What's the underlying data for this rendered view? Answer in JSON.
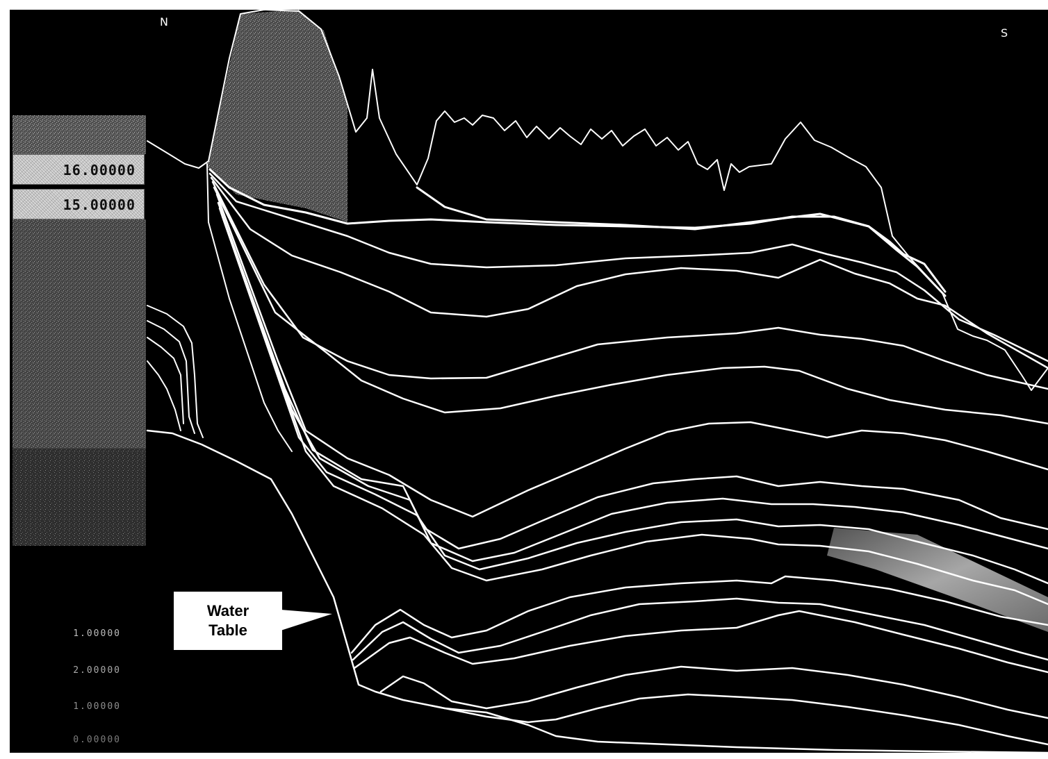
{
  "directions": {
    "north": "N",
    "south": "S"
  },
  "legend": [
    {
      "label": "16.00000"
    },
    {
      "label": "15.00000"
    }
  ],
  "scale": [
    "1.00000",
    "2.00000",
    "1.00000",
    "0.00000"
  ],
  "callout": {
    "text": "Water\nTable"
  },
  "colors": {
    "background": "#000000",
    "strata": "#ffffff",
    "fill_gray": "#8a8a8a"
  }
}
